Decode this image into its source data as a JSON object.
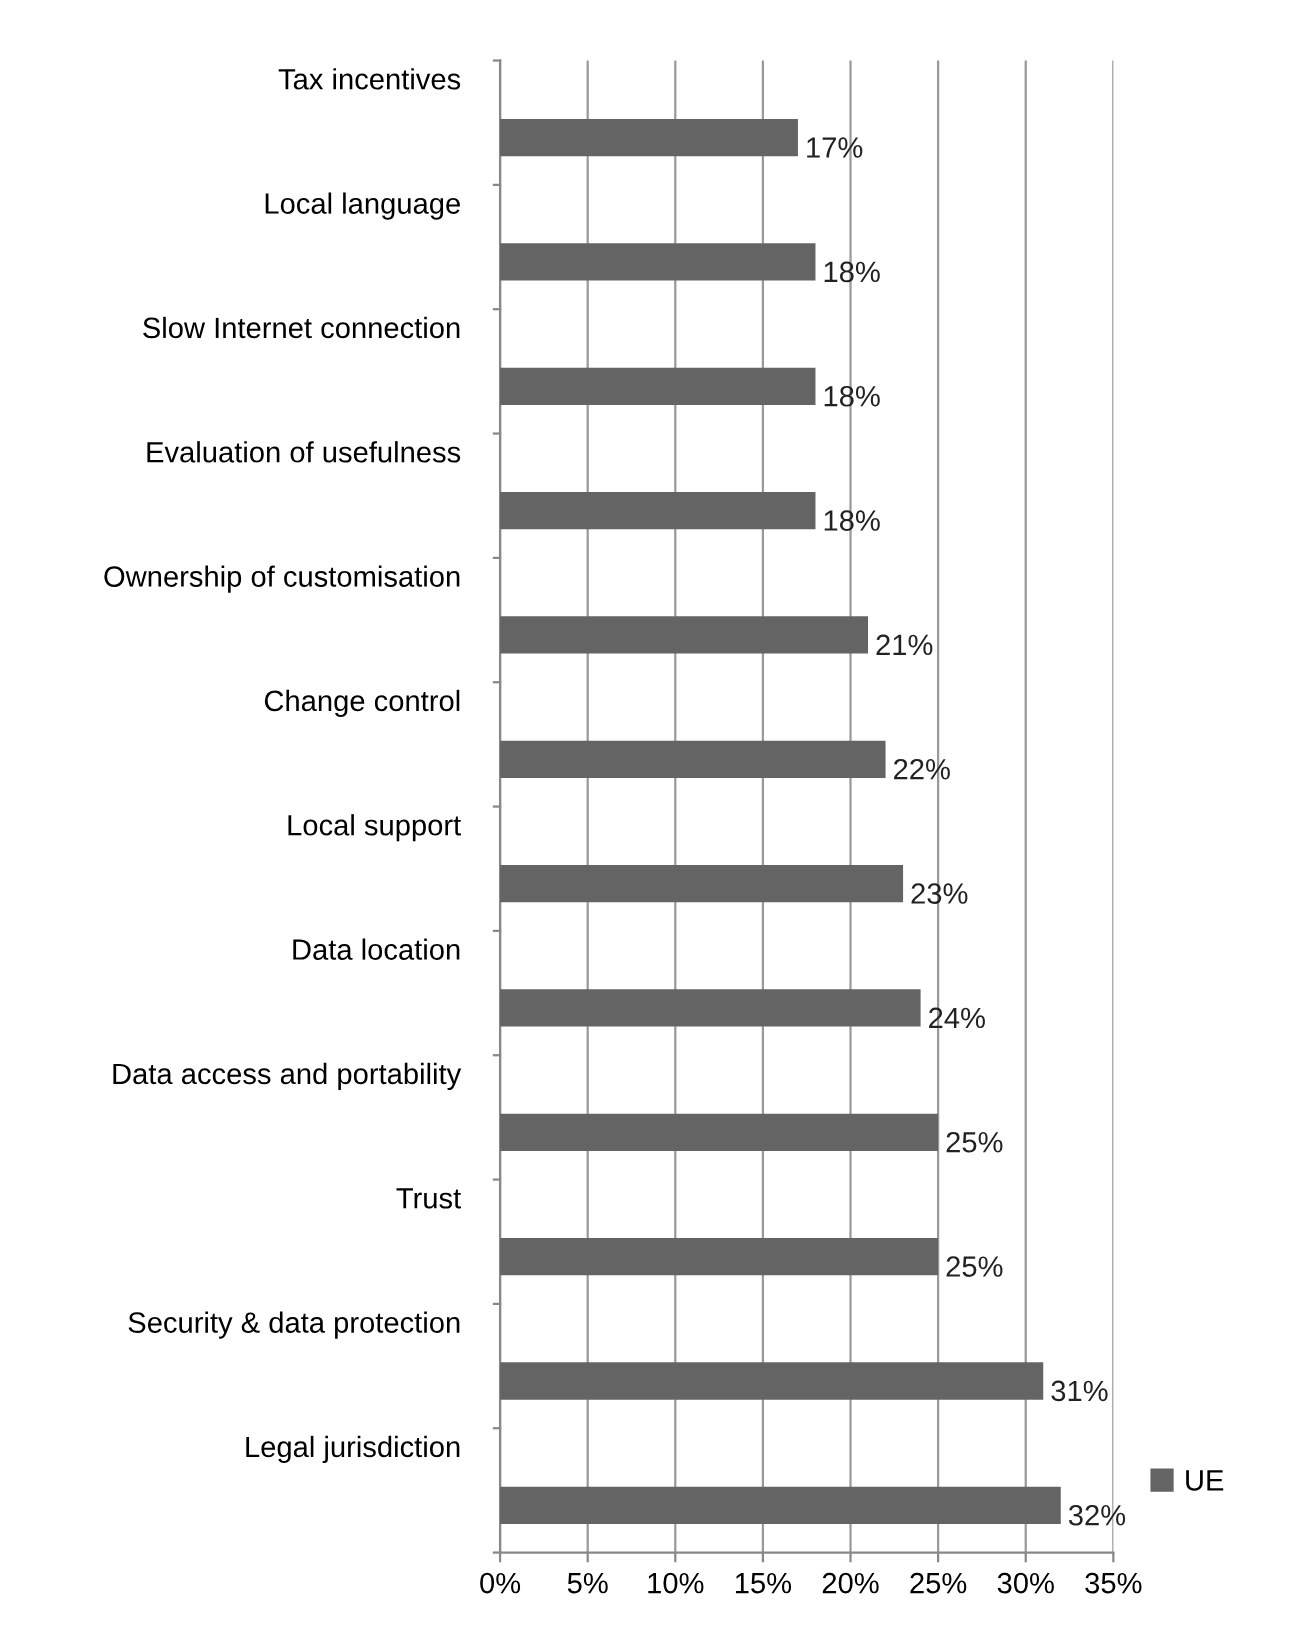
{
  "chart_data": {
    "type": "bar",
    "orientation": "horizontal",
    "categories": [
      "Tax incentives",
      "Local language",
      "Slow Internet connection",
      "Evaluation of usefulness",
      "Ownership of customisation",
      "Change control",
      "Local support",
      "Data location",
      "Data access and portability",
      "Trust",
      "Security & data protection",
      "Legal jurisdiction"
    ],
    "series": [
      {
        "name": "UE",
        "color": "#646464",
        "values": [
          17,
          18,
          18,
          18,
          21,
          22,
          23,
          24,
          25,
          25,
          31,
          32
        ],
        "value_labels": [
          "17%",
          "18%",
          "18%",
          "18%",
          "21%",
          "22%",
          "23%",
          "24%",
          "25%",
          "25%",
          "31%",
          "32%"
        ]
      }
    ],
    "xlim": [
      0,
      35
    ],
    "xticks": [
      {
        "value": 0,
        "label": "0%"
      },
      {
        "value": 5,
        "label": "5%"
      },
      {
        "value": 10,
        "label": "10%"
      },
      {
        "value": 15,
        "label": "15%"
      },
      {
        "value": 20,
        "label": "20%"
      },
      {
        "value": 25,
        "label": "25%"
      },
      {
        "value": 30,
        "label": "30%"
      },
      {
        "value": 35,
        "label": "35%"
      }
    ],
    "grid": "x",
    "legend": "right"
  }
}
